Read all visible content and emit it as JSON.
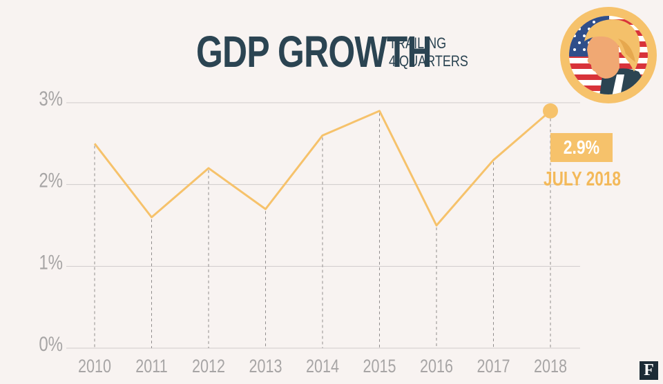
{
  "header": {
    "title": "GDP GROWTH",
    "subtitle_line1": "TRAILING",
    "subtitle_line2": "4 QUARTERS"
  },
  "callout": {
    "value": "2.9%",
    "date": "JULY 2018"
  },
  "logo": {
    "letter": "F"
  },
  "colors": {
    "background": "#f8f3f1",
    "line": "#f6c26b",
    "title": "#2b4452",
    "axis_text": "#a7a5a5",
    "grid": "#cfcbcb",
    "callout_date": "#f3b95a"
  },
  "chart_data": {
    "type": "line",
    "title": "GDP GROWTH",
    "subtitle": "TRAILING 4 QUARTERS",
    "xlabel": "",
    "ylabel": "",
    "categories": [
      "2010",
      "2011",
      "2012",
      "2013",
      "2014",
      "2015",
      "2016",
      "2017",
      "2018"
    ],
    "series": [
      {
        "values": [
          2.5,
          1.6,
          2.2,
          1.7,
          2.6,
          2.9,
          1.5,
          2.3,
          2.9
        ]
      }
    ],
    "y_ticks": [
      0,
      1,
      2,
      3
    ],
    "y_tick_labels": [
      "0%",
      "1%",
      "2%",
      "3%"
    ],
    "ylim": [
      0,
      3
    ],
    "grid": true,
    "annotation": {
      "category": "2018",
      "value": "2.9%",
      "label": "JULY 2018"
    }
  }
}
